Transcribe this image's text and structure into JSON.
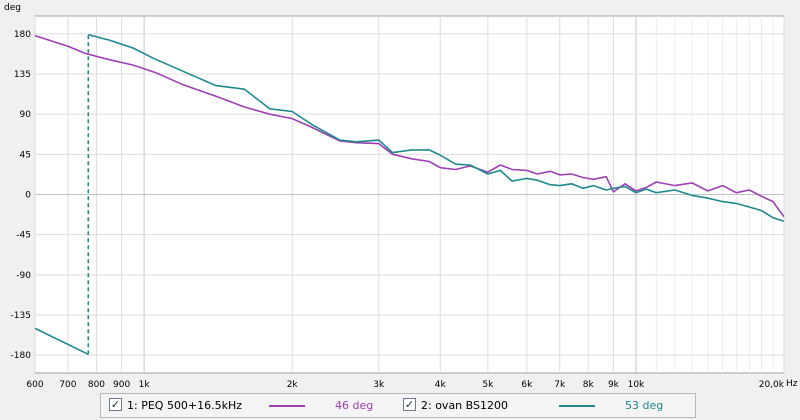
{
  "chart_data": {
    "type": "line",
    "title": "",
    "ylabel": "deg",
    "xlabel_unit": "Hz",
    "xscale": "log",
    "xlim": [
      600,
      20000
    ],
    "ylim": [
      -200,
      200
    ],
    "grid": true,
    "x_ticks": [
      {
        "value": 600,
        "label": "600"
      },
      {
        "value": 700,
        "label": "700"
      },
      {
        "value": 800,
        "label": "800"
      },
      {
        "value": 900,
        "label": "900"
      },
      {
        "value": 1000,
        "label": "1k"
      },
      {
        "value": 2000,
        "label": "2k"
      },
      {
        "value": 3000,
        "label": "3k"
      },
      {
        "value": 4000,
        "label": "4k"
      },
      {
        "value": 5000,
        "label": "5k"
      },
      {
        "value": 6000,
        "label": "6k"
      },
      {
        "value": 7000,
        "label": "7k"
      },
      {
        "value": 8000,
        "label": "8k"
      },
      {
        "value": 9000,
        "label": "9k"
      },
      {
        "value": 10000,
        "label": "10k"
      },
      {
        "value": 20000,
        "label": "20,0k"
      }
    ],
    "x_minor": [
      11000,
      12000,
      13000,
      14000,
      15000,
      16000,
      17000,
      18000,
      19000
    ],
    "y_ticks": [
      180,
      135,
      90,
      45,
      0,
      -45,
      -90,
      -135,
      -180
    ],
    "series": [
      {
        "name": "1: PEQ 500+16.5kHz",
        "color": "#9d3fb5",
        "points": [
          [
            600,
            178
          ],
          [
            700,
            166
          ],
          [
            760,
            158
          ],
          [
            850,
            151
          ],
          [
            950,
            145
          ],
          [
            1050,
            137
          ],
          [
            1200,
            123
          ],
          [
            1400,
            110
          ],
          [
            1600,
            98
          ],
          [
            1800,
            90
          ],
          [
            2000,
            85
          ],
          [
            2200,
            75
          ],
          [
            2500,
            60
          ],
          [
            2700,
            58
          ],
          [
            3000,
            57
          ],
          [
            3200,
            45
          ],
          [
            3500,
            40
          ],
          [
            3800,
            37
          ],
          [
            4000,
            30
          ],
          [
            4300,
            28
          ],
          [
            4600,
            32
          ],
          [
            5000,
            25
          ],
          [
            5300,
            33
          ],
          [
            5600,
            28
          ],
          [
            6000,
            27
          ],
          [
            6300,
            23
          ],
          [
            6700,
            26
          ],
          [
            7000,
            22
          ],
          [
            7400,
            23
          ],
          [
            7800,
            19
          ],
          [
            8200,
            17
          ],
          [
            8700,
            20
          ],
          [
            9000,
            3
          ],
          [
            9500,
            12
          ],
          [
            10000,
            4
          ],
          [
            10500,
            8
          ],
          [
            11000,
            14
          ],
          [
            12000,
            10
          ],
          [
            13000,
            13
          ],
          [
            14000,
            4
          ],
          [
            15000,
            10
          ],
          [
            16000,
            2
          ],
          [
            17000,
            5
          ],
          [
            18000,
            -2
          ],
          [
            19000,
            -8
          ],
          [
            20000,
            -25
          ]
        ]
      },
      {
        "name": "2: ovan BS1200",
        "color": "#1e8a8c",
        "points": [
          [
            600,
            -150
          ],
          [
            770,
            -179
          ],
          [
            770,
            179
          ],
          [
            850,
            173
          ],
          [
            950,
            164
          ],
          [
            1050,
            152
          ],
          [
            1200,
            138
          ],
          [
            1400,
            122
          ],
          [
            1600,
            118
          ],
          [
            1800,
            96
          ],
          [
            2000,
            93
          ],
          [
            2200,
            78
          ],
          [
            2500,
            61
          ],
          [
            2700,
            59
          ],
          [
            3000,
            61
          ],
          [
            3200,
            47
          ],
          [
            3500,
            50
          ],
          [
            3800,
            50
          ],
          [
            4000,
            44
          ],
          [
            4300,
            34
          ],
          [
            4600,
            33
          ],
          [
            5000,
            23
          ],
          [
            5300,
            27
          ],
          [
            5600,
            15
          ],
          [
            6000,
            18
          ],
          [
            6300,
            16
          ],
          [
            6700,
            11
          ],
          [
            7000,
            10
          ],
          [
            7400,
            12
          ],
          [
            7800,
            7
          ],
          [
            8200,
            10
          ],
          [
            8700,
            5
          ],
          [
            9000,
            7
          ],
          [
            9500,
            9
          ],
          [
            10000,
            2
          ],
          [
            10500,
            6
          ],
          [
            11000,
            2
          ],
          [
            12000,
            5
          ],
          [
            13000,
            -1
          ],
          [
            14000,
            -4
          ],
          [
            15000,
            -8
          ],
          [
            16000,
            -10
          ],
          [
            17000,
            -14
          ],
          [
            18000,
            -18
          ],
          [
            19000,
            -26
          ],
          [
            20000,
            -30
          ]
        ]
      }
    ],
    "discontinuity_x": 770
  },
  "legend": {
    "items": [
      {
        "check": "✓",
        "label": "1: PEQ 500+16.5kHz",
        "value": "46 deg",
        "color": "#9d3fb5"
      },
      {
        "check": "✓",
        "label": "2: ovan BS1200",
        "value": "53 deg",
        "color": "#1e8a8c"
      }
    ]
  }
}
